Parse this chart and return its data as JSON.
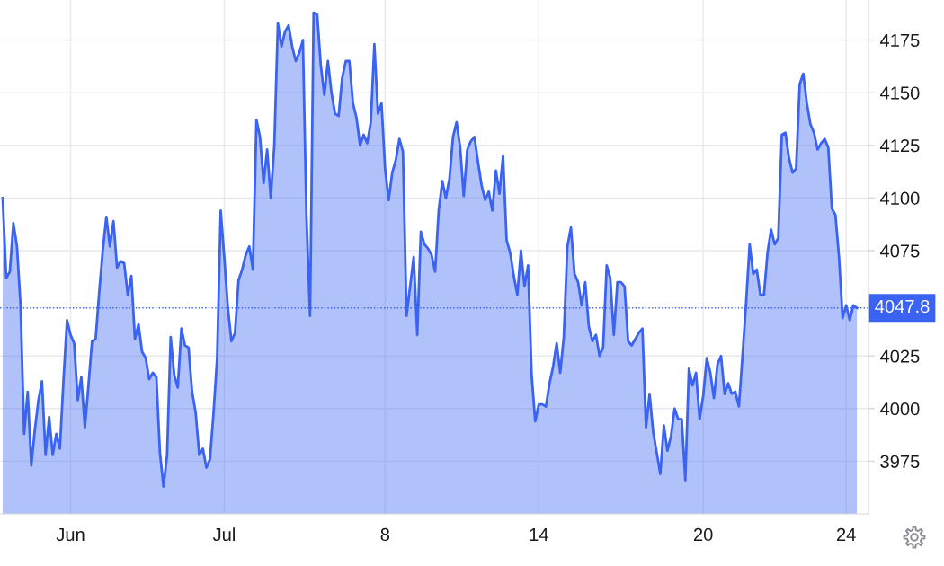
{
  "chart_data": {
    "type": "area",
    "categories": [
      null,
      null,
      null,
      null,
      null,
      null,
      null,
      null,
      null,
      null,
      null,
      null,
      null,
      null,
      null,
      null,
      null,
      null,
      null,
      "Jun",
      null,
      null,
      null,
      null,
      null,
      null,
      null,
      null,
      null,
      null,
      null,
      null,
      null,
      null,
      null,
      null,
      null,
      null,
      null,
      null,
      null,
      null,
      null,
      null,
      null,
      null,
      null,
      null,
      null,
      null,
      null,
      null,
      null,
      null,
      null,
      null,
      null,
      null,
      null,
      null,
      null,
      null,
      "Jul",
      null,
      null,
      null,
      null,
      null,
      null,
      null,
      null,
      null,
      null,
      null,
      null,
      null,
      null,
      null,
      null,
      null,
      null,
      null,
      null,
      null,
      null,
      null,
      null,
      null,
      null,
      null,
      null,
      null,
      null,
      null,
      null,
      null,
      null,
      null,
      null,
      null,
      null,
      null,
      null,
      null,
      null,
      null,
      null,
      "8",
      null,
      null,
      null,
      null,
      null,
      null,
      null,
      null,
      null,
      null,
      null,
      null,
      null,
      null,
      null,
      null,
      null,
      null,
      null,
      null,
      null,
      null,
      null,
      null,
      null,
      null,
      null,
      null,
      null,
      null,
      null,
      null,
      null,
      null,
      null,
      null,
      null,
      null,
      null,
      null,
      null,
      null,
      "14",
      null,
      null,
      null,
      null,
      null,
      null,
      null,
      null,
      null,
      null,
      null,
      null,
      null,
      null,
      null,
      null,
      null,
      null,
      null,
      null,
      null,
      null,
      null,
      null,
      null,
      null,
      null,
      null,
      null,
      null,
      null,
      null,
      null,
      null,
      null,
      null,
      null,
      null,
      null,
      null,
      null,
      null,
      null,
      null,
      null,
      "20",
      null,
      null,
      null,
      null,
      null,
      null,
      null,
      null,
      null,
      null,
      null,
      null,
      null,
      null,
      null,
      null,
      null,
      null,
      null,
      null,
      null,
      null,
      null,
      null,
      null,
      null,
      null,
      null,
      null,
      null,
      null,
      null,
      null,
      null,
      null,
      null,
      null,
      null,
      null,
      "24",
      null,
      null,
      null
    ],
    "values": [
      4100,
      4062,
      4065,
      4088,
      4077,
      4049,
      3988,
      4008,
      3973,
      3990,
      4004,
      4013,
      3978,
      3996,
      3978,
      3988,
      3981,
      4013,
      4042,
      4035,
      4031,
      4004,
      4015,
      3991,
      4011,
      4032,
      4033,
      4055,
      4075,
      4091,
      4077,
      4089,
      4067,
      4070,
      4069,
      4054,
      4063,
      4033,
      4040,
      4027,
      4024,
      4014,
      4017,
      4015,
      3979,
      3963,
      3978,
      4034,
      4016,
      4010,
      4038,
      4030,
      4029,
      4008,
      3998,
      3978,
      3981,
      3972,
      3976,
      3998,
      4024,
      4094,
      4072,
      4048,
      4032,
      4036,
      4061,
      4066,
      4073,
      4077,
      4066,
      4137,
      4129,
      4107,
      4123,
      4100,
      4125,
      4183,
      4172,
      4179,
      4182,
      4172,
      4165,
      4169,
      4175,
      4091,
      4044,
      4188,
      4187,
      4163,
      4149,
      4165,
      4150,
      4140,
      4139,
      4157,
      4165,
      4165,
      4145,
      4138,
      4125,
      4130,
      4126,
      4136,
      4173,
      4140,
      4145,
      4114,
      4099,
      4112,
      4118,
      4128,
      4122,
      4044,
      4058,
      4072,
      4035,
      4084,
      4078,
      4076,
      4073,
      4065,
      4094,
      4108,
      4100,
      4109,
      4129,
      4136,
      4124,
      4101,
      4123,
      4127,
      4129,
      4117,
      4106,
      4099,
      4103,
      4094,
      4113,
      4102,
      4120,
      4080,
      4074,
      4063,
      4054,
      4075,
      4058,
      4068,
      4016,
      3994,
      4002,
      4002,
      4001,
      4012,
      4020,
      4031,
      4017,
      4034,
      4077,
      4086,
      4064,
      4060,
      4049,
      4060,
      4039,
      4032,
      4035,
      4025,
      4029,
      4068,
      4062,
      4035,
      4060,
      4060,
      4058,
      4032,
      4030,
      4033,
      4036,
      4038,
      3991,
      4007,
      3989,
      3979,
      3969,
      3992,
      3980,
      3987,
      4000,
      3995,
      3995,
      3966,
      4019,
      4011,
      4017,
      3995,
      4006,
      4024,
      4017,
      4005,
      4021,
      4025,
      4007,
      4012,
      4007,
      4008,
      4001,
      4025,
      4050,
      4078,
      4064,
      4066,
      4054,
      4054,
      4074,
      4085,
      4078,
      4081,
      4130,
      4131,
      4119,
      4112,
      4114,
      4154,
      4159,
      4145,
      4135,
      4131,
      4123,
      4126,
      4128,
      4124,
      4095,
      4092,
      4072,
      4043,
      4049,
      4042,
      4049,
      4047.8
    ],
    "color": "#3b63f3",
    "ylim": [
      3950,
      4194
    ],
    "yticks": [
      3975,
      4000,
      4025,
      4075,
      4100,
      4125,
      4150,
      4175
    ],
    "grid": true,
    "ref_lines": [
      {
        "axis": "y",
        "value": 4047.8,
        "label": "4047.8",
        "color": "#3b63f3",
        "line_style": "dotted"
      }
    ]
  }
}
